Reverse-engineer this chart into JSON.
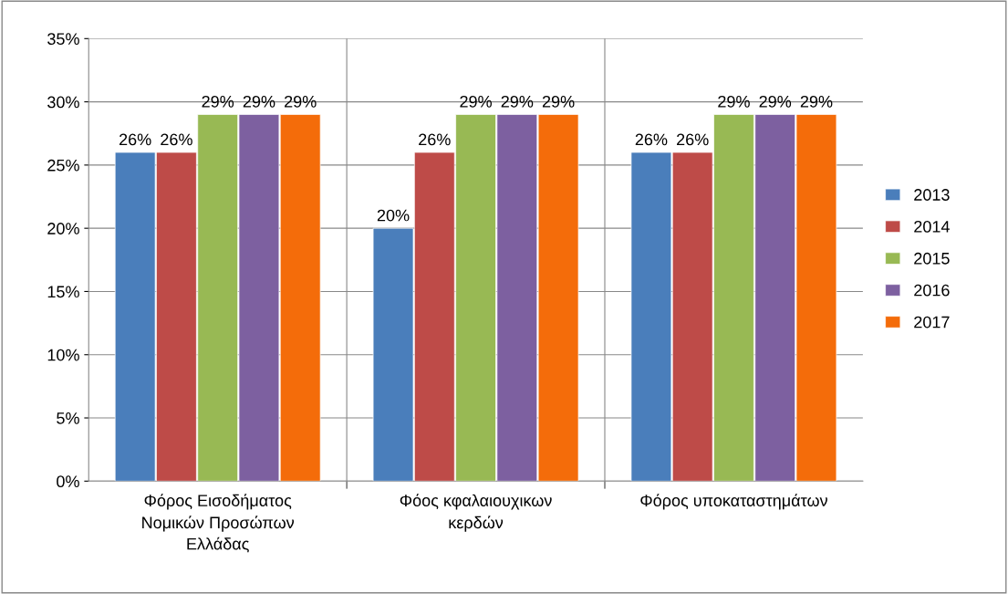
{
  "chart_data": {
    "type": "bar",
    "categories": [
      "Φόρος Εισοδήματος\nΝομικών Προσώπων\nΕλλάδας",
      "Φόος κφαλαιουχικων\nκερδών",
      "Φόρος υποκαταστημάτων"
    ],
    "series": [
      {
        "name": "2013",
        "color": "#4a7ebb",
        "values": [
          26,
          20,
          26
        ],
        "value_labels": [
          "26%",
          "20%",
          "26%"
        ]
      },
      {
        "name": "2014",
        "color": "#be4b48",
        "values": [
          26,
          26,
          26
        ],
        "value_labels": [
          "26%",
          "26%",
          "26%"
        ]
      },
      {
        "name": "2015",
        "color": "#98b954",
        "values": [
          29,
          29,
          29
        ],
        "value_labels": [
          "29%",
          "29%",
          "29%"
        ]
      },
      {
        "name": "2016",
        "color": "#7d60a0",
        "values": [
          29,
          29,
          29
        ],
        "value_labels": [
          "29%",
          "29%",
          "29%"
        ]
      },
      {
        "name": "2017",
        "color": "#f46c0a",
        "values": [
          29,
          29,
          29
        ],
        "value_labels": [
          "29%",
          "29%",
          "29%"
        ]
      }
    ],
    "ylim": [
      0,
      35
    ],
    "yticks": [
      {
        "value": 0,
        "label": "0%"
      },
      {
        "value": 5,
        "label": "5%"
      },
      {
        "value": 10,
        "label": "10%"
      },
      {
        "value": 15,
        "label": "15%"
      },
      {
        "value": 20,
        "label": "20%"
      },
      {
        "value": 25,
        "label": "25%"
      },
      {
        "value": 30,
        "label": "30%"
      },
      {
        "value": 35,
        "label": "35%"
      }
    ],
    "grid": "y",
    "legend": "right"
  }
}
